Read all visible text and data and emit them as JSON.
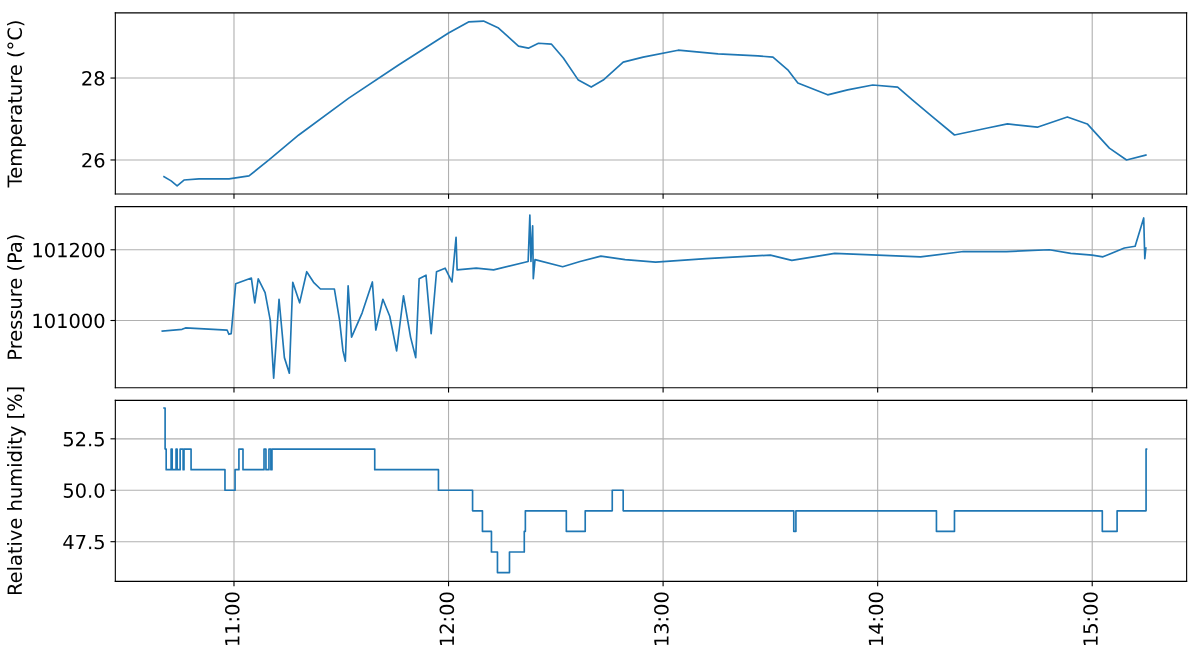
{
  "chart_data": [
    {
      "type": "line",
      "ylabel": "Temperature (°C)",
      "grid": true,
      "tick_labels": "y",
      "xlim": [
        10.447,
        15.44
      ],
      "xticks": [
        {
          "value": 11,
          "label": null
        },
        {
          "value": 12,
          "label": null
        },
        {
          "value": 13,
          "label": null
        },
        {
          "value": 14,
          "label": null
        },
        {
          "value": 15,
          "label": null
        }
      ],
      "ylim": [
        25.17,
        29.59
      ],
      "yticks": [
        26,
        28
      ],
      "series": [
        {
          "color": "#1f77b4",
          "x": [
            10.674,
            10.707,
            10.735,
            10.767,
            10.837,
            10.977,
            11.07,
            11.163,
            11.302,
            11.535,
            11.767,
            12.0,
            12.093,
            12.163,
            12.233,
            12.326,
            12.372,
            12.419,
            12.479,
            12.535,
            12.605,
            12.665,
            12.721,
            12.814,
            12.907,
            13.07,
            13.256,
            13.442,
            13.512,
            13.581,
            13.628,
            13.767,
            13.86,
            13.977,
            14.093,
            14.163,
            14.256,
            14.358,
            14.512,
            14.605,
            14.744,
            14.884,
            14.977,
            15.08,
            15.16,
            15.25
          ],
          "values": [
            25.59,
            25.49,
            25.37,
            25.51,
            25.54,
            25.54,
            25.61,
            26.0,
            26.61,
            27.51,
            28.32,
            29.1,
            29.37,
            29.39,
            29.22,
            28.78,
            28.73,
            28.85,
            28.83,
            28.49,
            27.95,
            27.78,
            27.95,
            28.39,
            28.51,
            28.68,
            28.59,
            28.54,
            28.51,
            28.2,
            27.88,
            27.59,
            27.71,
            27.83,
            27.78,
            27.46,
            27.05,
            26.61,
            26.78,
            26.88,
            26.8,
            27.05,
            26.88,
            26.29,
            26.0,
            26.12
          ]
        }
      ]
    },
    {
      "type": "line",
      "ylabel": "Pressure (Pa)",
      "grid": true,
      "tick_labels": "y",
      "xlim": [
        10.447,
        15.44
      ],
      "xticks": [
        {
          "value": 11,
          "label": null
        },
        {
          "value": 12,
          "label": null
        },
        {
          "value": 13,
          "label": null
        },
        {
          "value": 14,
          "label": null
        },
        {
          "value": 15,
          "label": null
        }
      ],
      "ylim": [
        100810,
        101322
      ],
      "yticks": [
        101000,
        101200
      ],
      "series": [
        {
          "color": "#1f77b4",
          "x": [
            10.666,
            10.758,
            10.774,
            10.968,
            10.976,
            10.987,
            11.008,
            11.081,
            11.097,
            11.113,
            11.145,
            11.169,
            11.185,
            11.21,
            11.235,
            11.258,
            11.274,
            11.306,
            11.339,
            11.371,
            11.403,
            11.468,
            11.492,
            11.508,
            11.519,
            11.532,
            11.548,
            11.597,
            11.645,
            11.661,
            11.694,
            11.726,
            11.758,
            11.79,
            11.823,
            11.847,
            11.863,
            11.895,
            11.919,
            11.944,
            11.984,
            12.016,
            12.035,
            12.04,
            12.129,
            12.21,
            12.371,
            12.379,
            12.384,
            12.392,
            12.395,
            12.403,
            12.532,
            12.613,
            12.71,
            12.823,
            12.965,
            13.2,
            13.5,
            13.6,
            13.8,
            14.0,
            14.2,
            14.4,
            14.6,
            14.8,
            14.9,
            15.0,
            15.05,
            15.15,
            15.2,
            15.24,
            15.245,
            15.25
          ],
          "values": [
            100970,
            100975,
            100979,
            100973,
            100961,
            100963,
            101104,
            101120,
            101050,
            101118,
            101079,
            101001,
            100837,
            101060,
            100895,
            100851,
            101108,
            101050,
            101138,
            101108,
            101089,
            101089,
            101001,
            100914,
            100885,
            101098,
            100953,
            101021,
            101109,
            100973,
            101060,
            101012,
            100914,
            101070,
            100953,
            100895,
            101118,
            101128,
            100963,
            101138,
            101148,
            101109,
            101235,
            101143,
            101148,
            101143,
            101167,
            101298,
            101167,
            101268,
            101118,
            101172,
            101152,
            101167,
            101182,
            101172,
            101165,
            101175,
            101185,
            101170,
            101190,
            101185,
            101180,
            101195,
            101195,
            101200,
            101190,
            101185,
            101180,
            101205,
            101210,
            101290,
            101175,
            101205
          ]
        }
      ]
    },
    {
      "type": "step",
      "ylabel": "Relative humidity [%]",
      "grid": true,
      "xlim": [
        10.447,
        15.44
      ],
      "xticks": [
        {
          "value": 11,
          "label": "11:00"
        },
        {
          "value": 12,
          "label": "12:00"
        },
        {
          "value": 13,
          "label": "13:00"
        },
        {
          "value": 14,
          "label": "14:00"
        },
        {
          "value": 15,
          "label": "15:00"
        }
      ],
      "ylim": [
        45.57,
        54.37
      ],
      "yticks": [
        47.5,
        {
          "value": 50,
          "label": "50.0"
        },
        52.5
      ],
      "series": [
        {
          "color": "#1f77b4",
          "x": [
            10.674,
            10.679,
            10.684,
            10.707,
            10.712,
            10.73,
            10.735,
            10.749,
            10.763,
            10.767,
            10.8,
            10.958,
            11.005,
            11.023,
            11.042,
            11.14,
            11.149,
            11.163,
            11.172,
            11.177,
            11.656,
            11.953,
            12.112,
            12.158,
            12.2,
            12.228,
            12.284,
            12.353,
            12.358,
            12.549,
            12.637,
            12.763,
            12.814,
            13.609,
            13.619,
            14.274,
            14.358,
            15.047,
            15.116,
            15.251,
            15.253
          ],
          "values": [
            54,
            52,
            51,
            52,
            51,
            52,
            51,
            52,
            51,
            52,
            51,
            50,
            51,
            52,
            51,
            52,
            51,
            52,
            51,
            52,
            51,
            50,
            49,
            48,
            47,
            46,
            47,
            48,
            49,
            48,
            49,
            50,
            49,
            48,
            49,
            48,
            49,
            48,
            49,
            52,
            52
          ]
        }
      ]
    }
  ]
}
